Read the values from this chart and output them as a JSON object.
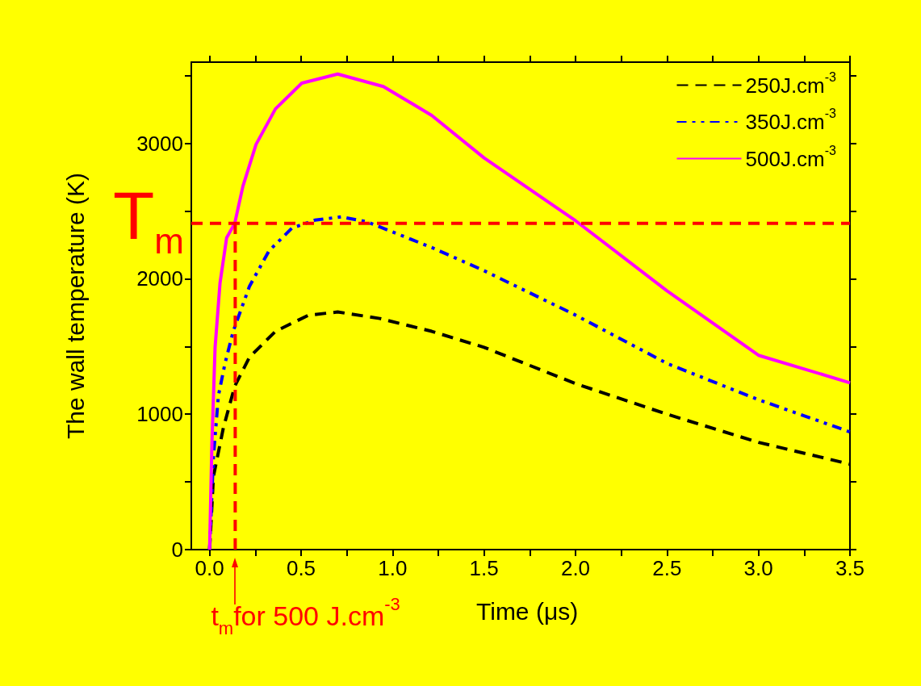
{
  "chart_data": {
    "type": "line",
    "xlabel": "Time (μs)",
    "ylabel": "The wall temperature (K)",
    "xlim": [
      -0.1,
      3.5
    ],
    "ylim": [
      0,
      3600
    ],
    "xticks": [
      {
        "value": 0,
        "label": "0.0"
      },
      {
        "value": 0.25,
        "label": null
      },
      {
        "value": 0.5,
        "label": "0.5"
      },
      {
        "value": 0.75,
        "label": null
      },
      {
        "value": 1,
        "label": "1.0"
      },
      {
        "value": 1.25,
        "label": null
      },
      {
        "value": 1.5,
        "label": "1.5"
      },
      {
        "value": 1.75,
        "label": null
      },
      {
        "value": 2,
        "label": "2.0"
      },
      {
        "value": 2.25,
        "label": null
      },
      {
        "value": 2.5,
        "label": "2.5"
      },
      {
        "value": 2.75,
        "label": null
      },
      {
        "value": 3,
        "label": "3.0"
      },
      {
        "value": 3.25,
        "label": null
      },
      {
        "value": 3.5,
        "label": "3.5"
      }
    ],
    "yticks": [
      0,
      {
        "value": 500,
        "label": null
      },
      1000,
      {
        "value": 1500,
        "label": null
      },
      2000,
      {
        "value": 2500,
        "label": null
      },
      3000,
      {
        "value": 3500,
        "label": null
      }
    ],
    "grid": false,
    "legend": "top right",
    "marker": "none",
    "series": [
      {
        "name": "250J.cm$^{-3}$",
        "color": "#000000",
        "line_style": "dashed",
        "x": [
          0,
          0.021,
          0.075,
          0.1375,
          0.218,
          0.36,
          0.54,
          0.7,
          0.93,
          1.214,
          1.5,
          2.0,
          2.5,
          3.0,
          3.5
        ],
        "values": [
          0,
          540,
          898,
          1207,
          1421,
          1612,
          1731,
          1755,
          1707,
          1612,
          1494,
          1226,
          1000,
          792,
          631
        ]
      },
      {
        "name": "350J.cm$^{-3}$",
        "color": "#0000ff",
        "line_style": "dashdot",
        "x": [
          0,
          0.021,
          0.048,
          0.084,
          0.129,
          0.218,
          0.325,
          0.45,
          0.575,
          0.718,
          0.86,
          1.214,
          1.5,
          2.0,
          2.5,
          3.0,
          3.5
        ],
        "values": [
          0,
          683,
          1136,
          1374,
          1612,
          1945,
          2207,
          2374,
          2433,
          2457,
          2421,
          2231,
          2060,
          1732,
          1375,
          1107,
          869
        ]
      },
      {
        "name": "500J.cm$^{-3}$",
        "color": "#ff00ff",
        "line_style": "solid",
        "x": [
          0,
          0.0125,
          0.03,
          0.057,
          0.093,
          0.1375,
          0.182,
          0.254,
          0.36,
          0.504,
          0.7,
          0.95,
          1.214,
          1.5,
          2.0,
          2.5,
          3.0,
          3.5
        ],
        "values": [
          0,
          779,
          1493,
          1969,
          2302,
          2410,
          2683,
          2993,
          3255,
          3445,
          3512,
          3420,
          3207,
          2893,
          2429,
          1911,
          1435,
          1232
        ]
      }
    ],
    "ref_lines": [
      {
        "axis": "y",
        "value": 2410,
        "label": "T$_{m}$",
        "color": "#ff0000",
        "line_style": "dashed"
      },
      {
        "axis": "x",
        "value": 0.14,
        "label": "t$_{m}$for 500 J.cm$^{-3}$",
        "color": "#ff0000",
        "line_style": "dashed"
      }
    ]
  }
}
